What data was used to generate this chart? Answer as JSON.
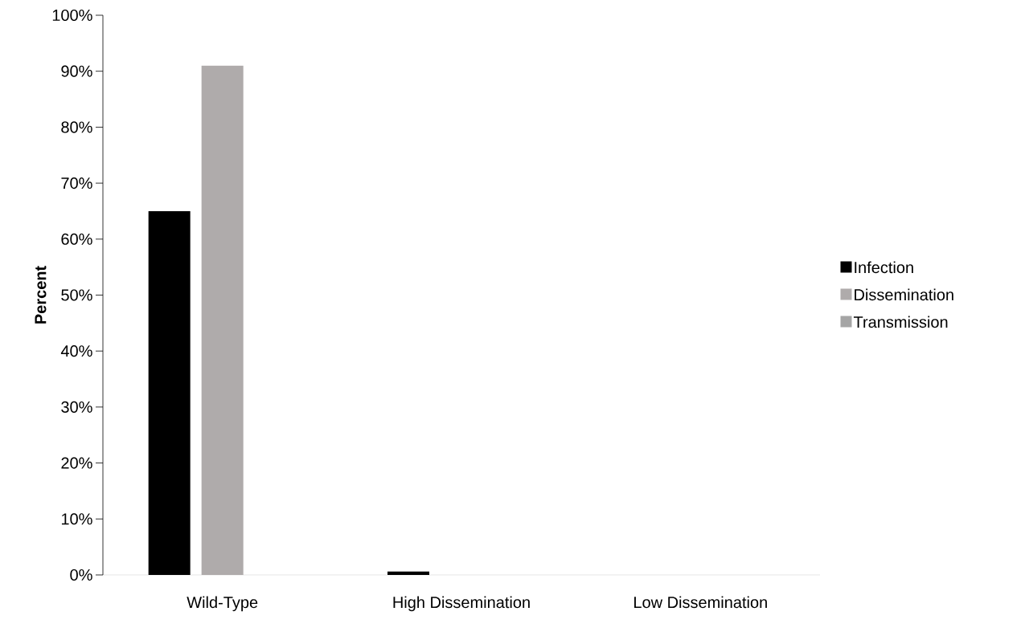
{
  "chart_data": {
    "type": "bar",
    "ylabel": "Percent",
    "categories": [
      "Wild-Type",
      "High Dissemination",
      "Low Dissemination"
    ],
    "series": [
      {
        "name": "Infection",
        "color": "#000000",
        "values": [
          65,
          0.6,
          0
        ]
      },
      {
        "name": "Dissemination",
        "color": "#afabab",
        "values": [
          91,
          0,
          0
        ]
      },
      {
        "name": "Transmission",
        "color": "#a5a5a5",
        "values": [
          0,
          0,
          0
        ]
      }
    ],
    "ylim": [
      0,
      100
    ],
    "yticks": [
      {
        "value": 0,
        "label": "0%"
      },
      {
        "value": 10,
        "label": "10%"
      },
      {
        "value": 20,
        "label": "20%"
      },
      {
        "value": 30,
        "label": "30%"
      },
      {
        "value": 40,
        "label": "40%"
      },
      {
        "value": 50,
        "label": "50%"
      },
      {
        "value": 60,
        "label": "60%"
      },
      {
        "value": 70,
        "label": "70%"
      },
      {
        "value": 80,
        "label": "80%"
      },
      {
        "value": 90,
        "label": "90%"
      },
      {
        "value": 100,
        "label": "100%"
      }
    ],
    "grid": false,
    "legend": "right"
  }
}
